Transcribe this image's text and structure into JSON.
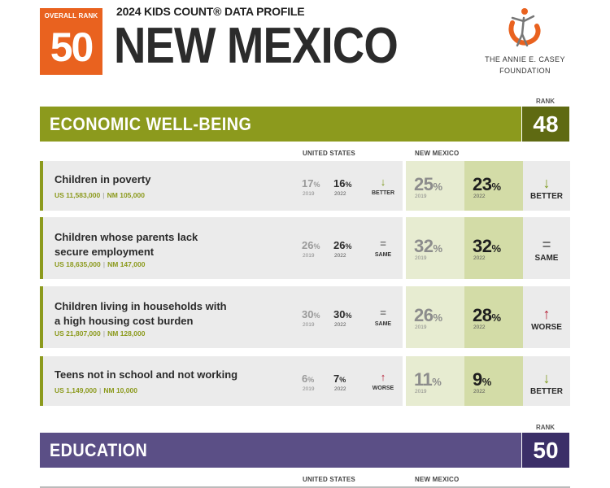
{
  "header": {
    "overall_rank_label": "OVERALL RANK",
    "overall_rank": "50",
    "profile_title": "2024 KIDS COUNT® DATA PROFILE",
    "state": "NEW MEXICO",
    "foundation_line1": "THE ANNIE E. CASEY",
    "foundation_line2": "FOUNDATION",
    "logo_icon": "casey-foundation-logo-icon"
  },
  "colors": {
    "orange": "#e9621f",
    "economic": "#8c9a1d",
    "economic_dark": "#5f6a12",
    "education": "#5b4f86",
    "education_dark": "#3b2f68",
    "better": "#7e9a21",
    "worse": "#b41f36"
  },
  "economic": {
    "title": "ECONOMIC WELL-BEING",
    "rank_label": "RANK",
    "rank": "48",
    "us_header": "UNITED STATES",
    "nm_header": "NEW MEXICO",
    "rows": [
      {
        "line1": "Children in poverty",
        "line2": "",
        "us_count": "US 11,583,000",
        "nm_count": "NM 105,000",
        "us_old": "17",
        "us_old_year": "2019",
        "us_new": "16",
        "us_new_year": "2022",
        "us_symbol": "↓",
        "us_trend": "BETTER",
        "nm_old": "25",
        "nm_old_year": "2019",
        "nm_new": "23",
        "nm_new_year": "2022",
        "nm_symbol": "↓",
        "nm_trend": "BETTER"
      },
      {
        "line1": "Children whose parents lack",
        "line2": "secure employment",
        "us_count": "US 18,635,000",
        "nm_count": "NM 147,000",
        "us_old": "26",
        "us_old_year": "2019",
        "us_new": "26",
        "us_new_year": "2022",
        "us_symbol": "=",
        "us_trend": "SAME",
        "nm_old": "32",
        "nm_old_year": "2019",
        "nm_new": "32",
        "nm_new_year": "2022",
        "nm_symbol": "=",
        "nm_trend": "SAME"
      },
      {
        "line1": "Children living in households with",
        "line2": "a high housing cost burden",
        "us_count": "US 21,807,000",
        "nm_count": "NM 128,000",
        "us_old": "30",
        "us_old_year": "2019",
        "us_new": "30",
        "us_new_year": "2022",
        "us_symbol": "=",
        "us_trend": "SAME",
        "nm_old": "26",
        "nm_old_year": "2019",
        "nm_new": "28",
        "nm_new_year": "2022",
        "nm_symbol": "↑",
        "nm_trend": "WORSE"
      },
      {
        "line1": "Teens not in school and not working",
        "line2": "",
        "us_count": "US 1,149,000",
        "nm_count": "NM 10,000",
        "us_old": "6",
        "us_old_year": "2019",
        "us_new": "7",
        "us_new_year": "2022",
        "us_symbol": "↑",
        "us_trend": "WORSE",
        "nm_old": "11",
        "nm_old_year": "2019",
        "nm_new": "9",
        "nm_new_year": "2022",
        "nm_symbol": "↓",
        "nm_trend": "BETTER"
      }
    ]
  },
  "education": {
    "title": "EDUCATION",
    "rank_label": "RANK",
    "rank": "50",
    "us_header": "UNITED STATES",
    "nm_header": "NEW MEXICO"
  },
  "pct_sign": "%"
}
